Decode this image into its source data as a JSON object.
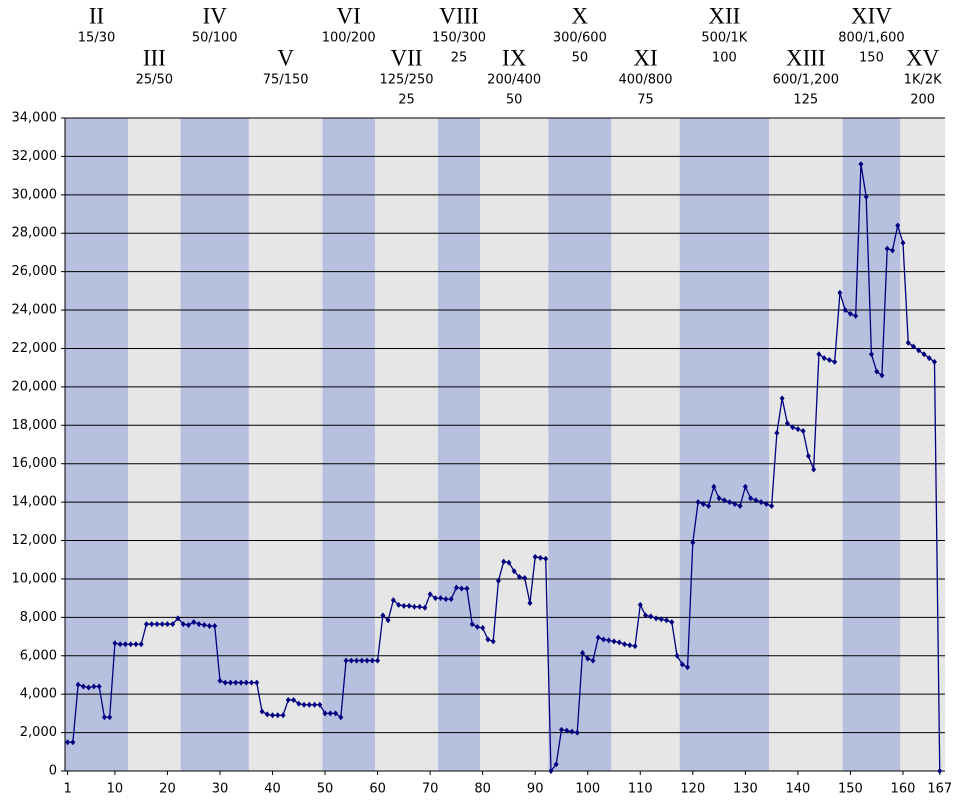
{
  "chart_data": {
    "type": "line",
    "x": [
      1,
      2,
      3,
      4,
      5,
      6,
      7,
      8,
      9,
      10,
      11,
      12,
      13,
      14,
      15,
      16,
      17,
      18,
      19,
      20,
      21,
      22,
      23,
      24,
      25,
      26,
      27,
      28,
      29,
      30,
      31,
      32,
      33,
      34,
      35,
      36,
      37,
      38,
      39,
      40,
      41,
      42,
      43,
      44,
      45,
      46,
      47,
      48,
      49,
      50,
      51,
      52,
      53,
      54,
      55,
      56,
      57,
      58,
      59,
      60,
      61,
      62,
      63,
      64,
      65,
      66,
      67,
      68,
      69,
      70,
      71,
      72,
      73,
      74,
      75,
      76,
      77,
      78,
      79,
      80,
      81,
      82,
      83,
      84,
      85,
      86,
      87,
      88,
      89,
      90,
      91,
      92,
      93,
      94,
      95,
      96,
      97,
      98,
      99,
      100,
      101,
      102,
      103,
      104,
      105,
      106,
      107,
      108,
      109,
      110,
      111,
      112,
      113,
      114,
      115,
      116,
      117,
      118,
      119,
      120,
      121,
      122,
      123,
      124,
      125,
      126,
      127,
      128,
      129,
      130,
      131,
      132,
      133,
      134,
      135,
      136,
      137,
      138,
      139,
      140,
      141,
      142,
      143,
      144,
      145,
      146,
      147,
      148,
      149,
      150,
      151,
      152,
      153,
      154,
      155,
      156,
      157,
      158,
      159,
      160,
      161,
      162,
      163,
      164,
      165,
      166,
      167
    ],
    "series": [
      {
        "color": "#000080",
        "values": [
          1500,
          1500,
          4500,
          4400,
          4350,
          4400,
          4400,
          2800,
          2800,
          6650,
          6600,
          6600,
          6600,
          6600,
          6600,
          7650,
          7650,
          7650,
          7650,
          7650,
          7650,
          7950,
          7650,
          7600,
          7750,
          7650,
          7600,
          7550,
          7550,
          4700,
          4600,
          4600,
          4600,
          4600,
          4600,
          4600,
          4600,
          3100,
          2950,
          2900,
          2900,
          2900,
          3700,
          3700,
          3500,
          3450,
          3450,
          3450,
          3450,
          3000,
          3000,
          3000,
          2800,
          5750,
          5750,
          5750,
          5750,
          5750,
          5750,
          5750,
          8100,
          7850,
          8900,
          8650,
          8600,
          8600,
          8550,
          8550,
          8500,
          9200,
          9000,
          9000,
          8950,
          8950,
          9550,
          9500,
          9500,
          7650,
          7500,
          7450,
          6850,
          6750,
          9900,
          10900,
          10850,
          10400,
          10100,
          10050,
          8750,
          11150,
          11100,
          11050,
          0,
          350,
          2150,
          2100,
          2050,
          2000,
          6150,
          5850,
          5750,
          6950,
          6850,
          6800,
          6750,
          6700,
          6600,
          6550,
          6500,
          8650,
          8100,
          8050,
          7950,
          7900,
          7850,
          7750,
          6000,
          5550,
          5400,
          11900,
          14000,
          13900,
          13800,
          14800,
          14200,
          14100,
          14000,
          13900,
          13800,
          14800,
          14200,
          14100,
          14000,
          13900,
          13800,
          17600,
          19400,
          18100,
          17900,
          17800,
          17700,
          16400,
          15700,
          21700,
          21500,
          21400,
          21300,
          24900,
          24000,
          23800,
          23700,
          31600,
          29900,
          21700,
          20800,
          20600,
          27200,
          27100,
          28400,
          27500,
          22300,
          22100,
          21900,
          21700,
          21500,
          21300,
          0
        ]
      }
    ],
    "xlim": [
      0.5,
      168
    ],
    "xticks": [
      1,
      10,
      20,
      30,
      40,
      50,
      60,
      70,
      80,
      90,
      100,
      110,
      120,
      130,
      140,
      150,
      160,
      167
    ],
    "ylim": [
      0,
      34000
    ],
    "yticks": [
      0,
      {
        "value": 2000,
        "label": "2,000"
      },
      {
        "value": 4000,
        "label": "4,000"
      },
      {
        "value": 6000,
        "label": "6,000"
      },
      {
        "value": 8000,
        "label": "8,000"
      },
      {
        "value": 10000,
        "label": "10,000"
      },
      {
        "value": 12000,
        "label": "12,000"
      },
      {
        "value": 14000,
        "label": "14,000"
      },
      {
        "value": 16000,
        "label": "16,000"
      },
      {
        "value": 18000,
        "label": "18,000"
      },
      {
        "value": 20000,
        "label": "20,000"
      },
      {
        "value": 22000,
        "label": "22,000"
      },
      {
        "value": 24000,
        "label": "24,000"
      },
      {
        "value": 26000,
        "label": "26,000"
      },
      {
        "value": 28000,
        "label": "28,000"
      },
      {
        "value": 30000,
        "label": "30,000"
      },
      {
        "value": 32000,
        "label": "32,000"
      },
      {
        "value": 34000,
        "label": "34,000"
      }
    ],
    "grid": true,
    "band_colors": [
      "#b8c0e0",
      "#e6e6e6"
    ],
    "levels": [
      {
        "name": "II",
        "blinds": "15/30",
        "start": 0.5,
        "end": 12.5
      },
      {
        "name": "III",
        "blinds": "25/50",
        "start": 12.5,
        "end": 22.5
      },
      {
        "name": "IV",
        "blinds": "50/100",
        "start": 22.5,
        "end": 35.5
      },
      {
        "name": "V",
        "blinds": "75/150",
        "start": 35.5,
        "end": 49.5
      },
      {
        "name": "VI",
        "blinds": "100/200",
        "start": 49.5,
        "end": 59.5
      },
      {
        "name": "VII",
        "blinds": "125/250",
        "ante": "25",
        "start": 59.5,
        "end": 71.5
      },
      {
        "name": "VIII",
        "blinds": "150/300",
        "ante": "25",
        "start": 71.5,
        "end": 79.5
      },
      {
        "name": "IX",
        "blinds": "200/400",
        "ante": "50",
        "start": 79.5,
        "end": 92.5
      },
      {
        "name": "X",
        "blinds": "300/600",
        "ante": "50",
        "start": 92.5,
        "end": 104.5
      },
      {
        "name": "XI",
        "blinds": "400/800",
        "ante": "75",
        "start": 104.5,
        "end": 117.5
      },
      {
        "name": "XII",
        "blinds": "500/1K",
        "ante": "100",
        "start": 117.5,
        "end": 134.5
      },
      {
        "name": "XIII",
        "blinds": "600/1,200",
        "ante": "125",
        "start": 134.5,
        "end": 148.5
      },
      {
        "name": "XIV",
        "blinds": "800/1,600",
        "ante": "150",
        "start": 148.5,
        "end": 159.5
      },
      {
        "name": "XV",
        "blinds": "1K/2K",
        "ante": "200",
        "start": 159.5,
        "end": 168
      }
    ]
  }
}
